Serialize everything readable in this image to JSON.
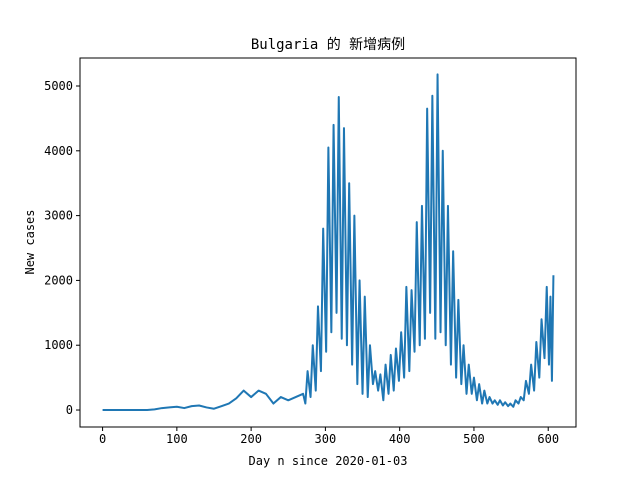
{
  "chart_data": {
    "type": "line",
    "title": "Bulgaria 的 新增病例",
    "x_label": "Day n since 2020-01-03",
    "y_label": "New cases",
    "x": [
      0,
      10,
      20,
      30,
      40,
      50,
      60,
      70,
      80,
      90,
      100,
      110,
      120,
      130,
      140,
      150,
      160,
      170,
      180,
      190,
      200,
      210,
      220,
      230,
      240,
      250,
      260,
      270,
      273,
      276,
      280,
      283,
      287,
      290,
      294,
      297,
      301,
      304,
      308,
      311,
      315,
      318,
      322,
      325,
      329,
      332,
      336,
      339,
      343,
      346,
      350,
      353,
      357,
      360,
      364,
      367,
      371,
      374,
      378,
      381,
      385,
      388,
      392,
      395,
      399,
      402,
      406,
      409,
      413,
      416,
      420,
      423,
      427,
      430,
      434,
      437,
      441,
      444,
      448,
      451,
      455,
      458,
      462,
      465,
      469,
      472,
      476,
      479,
      483,
      486,
      490,
      493,
      497,
      500,
      504,
      507,
      511,
      514,
      518,
      521,
      525,
      528,
      532,
      535,
      539,
      542,
      546,
      549,
      553,
      556,
      560,
      563,
      567,
      570,
      574,
      577,
      581,
      584,
      588,
      591,
      595,
      598,
      601,
      603,
      605,
      607
    ],
    "series": [
      {
        "name": "New cases",
        "color": "#1f77b4",
        "values": [
          0,
          0,
          0,
          0,
          0,
          0,
          0,
          10,
          30,
          40,
          50,
          30,
          60,
          70,
          40,
          20,
          60,
          100,
          180,
          300,
          200,
          300,
          250,
          100,
          200,
          150,
          200,
          250,
          100,
          600,
          200,
          1000,
          300,
          1600,
          600,
          2800,
          900,
          4050,
          1200,
          4400,
          1500,
          4830,
          1100,
          4350,
          1000,
          3500,
          700,
          3000,
          400,
          2000,
          250,
          1750,
          200,
          1000,
          400,
          600,
          300,
          550,
          150,
          700,
          250,
          850,
          300,
          950,
          450,
          1200,
          500,
          1900,
          600,
          1850,
          900,
          2900,
          1000,
          3150,
          1100,
          4650,
          1500,
          4850,
          1100,
          5180,
          1200,
          4000,
          1000,
          3150,
          700,
          2450,
          500,
          1700,
          400,
          1000,
          250,
          700,
          250,
          500,
          150,
          400,
          100,
          300,
          100,
          200,
          100,
          150,
          80,
          150,
          70,
          120,
          60,
          100,
          50,
          150,
          100,
          200,
          150,
          450,
          250,
          700,
          300,
          1050,
          500,
          1400,
          800,
          1900,
          700,
          1750,
          450,
          2080
        ]
      }
    ],
    "xlim": [
      -30.4,
      637.4
    ],
    "ylim": [
      -262,
      5432
    ],
    "xticks": [
      0,
      100,
      200,
      300,
      400,
      500,
      600
    ],
    "yticks": [
      0,
      1000,
      2000,
      3000,
      4000,
      5000
    ]
  }
}
